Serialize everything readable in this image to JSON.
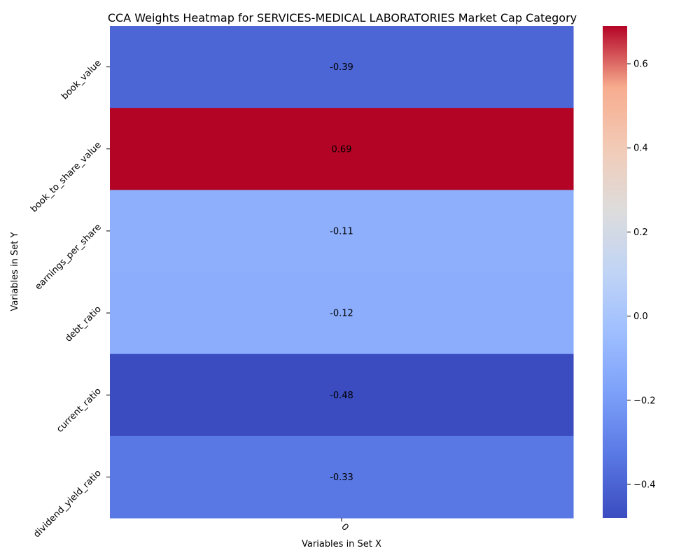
{
  "chart_data": {
    "type": "heatmap",
    "title": "CCA Weights Heatmap for SERVICES-MEDICAL LABORATORIES Market Cap Category",
    "xlabel": "Variables in Set X",
    "ylabel": "Variables in Set Y",
    "x_categories": [
      "0"
    ],
    "y_categories": [
      "book_value",
      "book_to_share_value",
      "earnings_per_share",
      "debt_ratio",
      "current_ratio",
      "dividend_yield_ratio"
    ],
    "values": [
      [
        -0.39
      ],
      [
        0.69
      ],
      [
        -0.11
      ],
      [
        -0.12
      ],
      [
        -0.48
      ],
      [
        -0.33
      ]
    ],
    "cell_labels": [
      "-0.39",
      "0.69",
      "-0.11",
      "-0.12",
      "-0.48",
      "-0.33"
    ],
    "colormap": "coolwarm",
    "colorbar": {
      "range": [
        -0.48,
        0.69
      ],
      "ticks": [
        -0.4,
        -0.2,
        0.0,
        0.2,
        0.4,
        0.6
      ],
      "tick_labels": [
        "−0.4",
        "−0.2",
        "0.0",
        "0.2",
        "0.4",
        "0.6"
      ]
    }
  }
}
